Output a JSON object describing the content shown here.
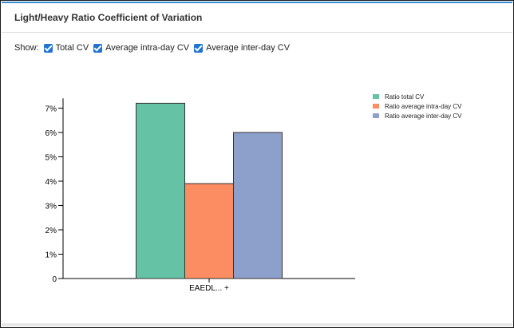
{
  "panel": {
    "title": "Light/Heavy Ratio Coefficient of Variation"
  },
  "show": {
    "label": "Show:",
    "options": [
      {
        "label": "Total CV",
        "checked": true
      },
      {
        "label": "Average intra-day CV",
        "checked": true
      },
      {
        "label": "Average inter-day CV",
        "checked": true
      }
    ]
  },
  "chart_data": {
    "type": "bar",
    "categories": [
      "EAEDL... +"
    ],
    "series": [
      {
        "name": "Ratio total CV",
        "color": "#66c2a5",
        "values": [
          7.2
        ]
      },
      {
        "name": "Ratio average intra-day CV",
        "color": "#fc8d62",
        "values": [
          3.9
        ]
      },
      {
        "name": "Ratio average inter-day CV",
        "color": "#8da0cb",
        "values": [
          6.0
        ]
      }
    ],
    "ylim": [
      0,
      7.4
    ],
    "yticks": [
      {
        "value": 0,
        "label": "0"
      },
      {
        "value": 1,
        "label": "1%"
      },
      {
        "value": 2,
        "label": "2%"
      },
      {
        "value": 3,
        "label": "3%"
      },
      {
        "value": 4,
        "label": "4%"
      },
      {
        "value": 5,
        "label": "5%"
      },
      {
        "value": 6,
        "label": "6%"
      },
      {
        "value": 7,
        "label": "7%"
      }
    ],
    "grid": false,
    "legend_position": "top-right"
  }
}
